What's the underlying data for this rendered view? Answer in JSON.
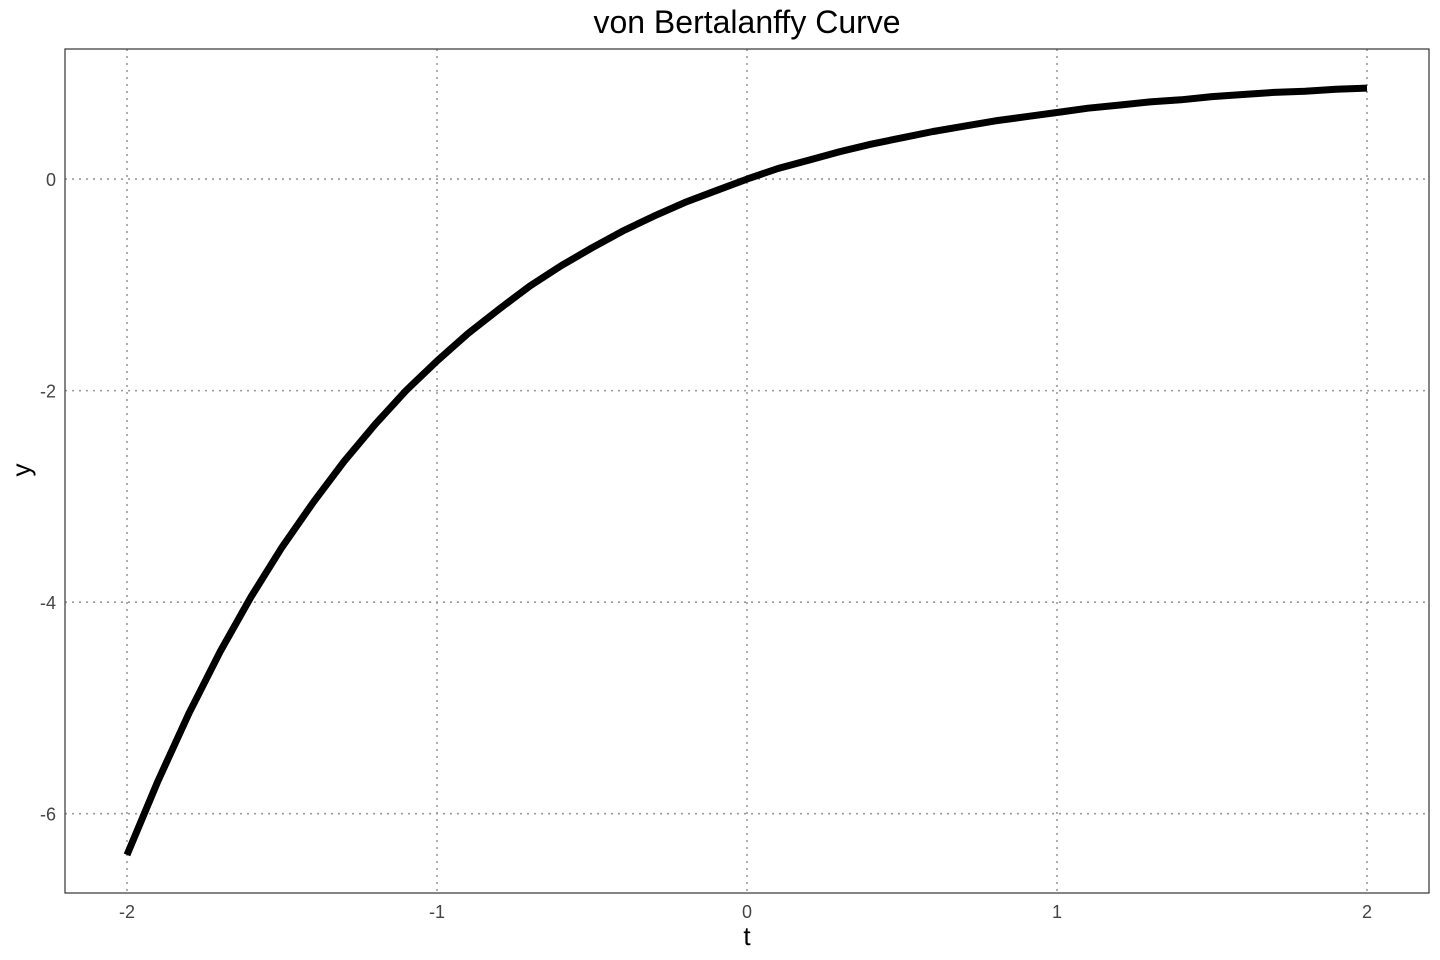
{
  "chart_data": {
    "type": "line",
    "title": "von Bertalanffy Curve",
    "xlabel": "t",
    "ylabel": "y",
    "xlim": [
      -2.2,
      2.2
    ],
    "ylim": [
      -6.75,
      1.23
    ],
    "x_ticks": [
      -2,
      -1,
      0,
      1,
      2
    ],
    "x_tick_labels": [
      "-2",
      "-1",
      "0",
      "1",
      "2"
    ],
    "y_ticks": [
      -6,
      -4,
      -2,
      0
    ],
    "y_tick_labels": [
      "-6",
      "-4",
      "-2",
      "0"
    ],
    "grid": true,
    "legend": "none",
    "series": [
      {
        "color": "#000000",
        "x": [
          -2,
          -1.9,
          -1.8,
          -1.7,
          -1.6,
          -1.5,
          -1.4,
          -1.3,
          -1.2,
          -1.1,
          -1,
          -0.9,
          -0.8,
          -0.7,
          -0.6,
          -0.5,
          -0.4,
          -0.3,
          -0.2,
          -0.1,
          0,
          0.1,
          0.2,
          0.3,
          0.4,
          0.5,
          0.6,
          0.7,
          0.8,
          0.9,
          1,
          1.1,
          1.2,
          1.3,
          1.4,
          1.5,
          1.6,
          1.7,
          1.8,
          1.9,
          2
        ],
        "y": [
          -6.39,
          -5.69,
          -5.05,
          -4.47,
          -3.95,
          -3.48,
          -3.06,
          -2.67,
          -2.32,
          -2.0,
          -1.72,
          -1.46,
          -1.23,
          -1.01,
          -0.82,
          -0.65,
          -0.49,
          -0.35,
          -0.22,
          -0.11,
          0.0,
          0.1,
          0.18,
          0.26,
          0.33,
          0.39,
          0.45,
          0.5,
          0.55,
          0.59,
          0.63,
          0.67,
          0.7,
          0.73,
          0.75,
          0.78,
          0.8,
          0.82,
          0.83,
          0.85,
          0.86
        ]
      }
    ]
  }
}
